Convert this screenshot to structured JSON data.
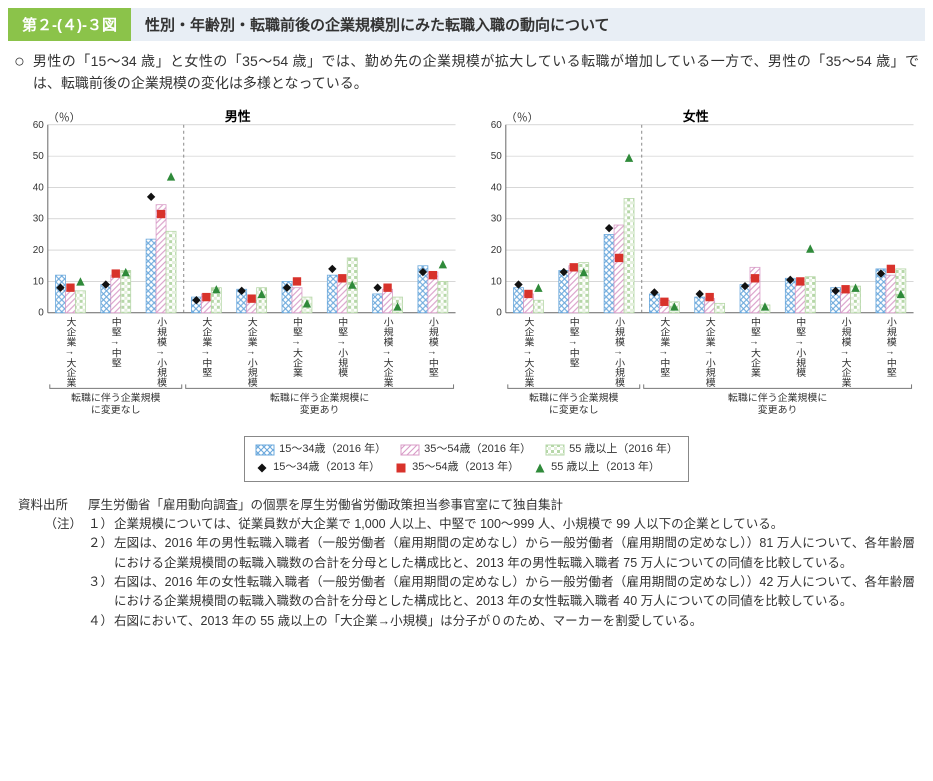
{
  "figure_label": "第２-(４)-３図",
  "figure_title": "性別・年齢別・転職前後の企業規模別にみた転職入職の動向について",
  "lead_bullet": "○",
  "lead_text": "男性の「15～34 歳」と女性の「35～54 歳」では、勤め先の企業規模が拡大している転職が増加している一方で、男性の「35～54 歳」では、転職前後の企業規模の変化は多様となっている。",
  "y_axis_label": "（％）",
  "y_lim": [
    0,
    60
  ],
  "y_tick_step": 10,
  "grid_color": "#bfbfbf",
  "axis_color": "#666666",
  "chart_bg": "#ffffff",
  "series_colors": {
    "bar_15_34": "#6aa8dc",
    "bar_35_54": "#d89bc7",
    "bar_55plus": "#b6d7a8",
    "marker_15_34": "#111111",
    "marker_35_54": "#d8322b",
    "marker_55plus": "#2f8a3a"
  },
  "categories": [
    "大企業→大企業",
    "中堅→中堅",
    "小規模→小規模",
    "大企業→中堅",
    "大企業→小規模",
    "中堅→大企業",
    "中堅→小規模",
    "小規模→大企業",
    "小規模→中堅"
  ],
  "group_labels": {
    "no_change": "転職に伴う企業規模\nに変更なし",
    "change": "転職に伴う企業規模に\n変更あり"
  },
  "group_split_after_index": 2,
  "panels": [
    {
      "title": "男性",
      "bars": [
        [
          12.0,
          7.0,
          7.0
        ],
        [
          9.0,
          12.0,
          13.5
        ],
        [
          23.5,
          34.5,
          26.0
        ],
        [
          5.0,
          6.0,
          8.0
        ],
        [
          7.5,
          4.0,
          8.0
        ],
        [
          10.0,
          8.0,
          5.0
        ],
        [
          12.0,
          10.5,
          17.5
        ],
        [
          6.0,
          7.5,
          5.0
        ],
        [
          15.0,
          13.0,
          10.0
        ]
      ],
      "markers": [
        [
          8.0,
          8.0,
          10.0
        ],
        [
          9.0,
          12.5,
          13.0
        ],
        [
          37.0,
          31.5,
          43.5
        ],
        [
          4.0,
          5.0,
          7.5
        ],
        [
          7.0,
          4.5,
          6.0
        ],
        [
          8.0,
          10.0,
          3.0
        ],
        [
          14.0,
          11.0,
          9.0
        ],
        [
          8.0,
          8.0,
          2.0
        ],
        [
          13.0,
          12.0,
          15.5
        ]
      ]
    },
    {
      "title": "女性",
      "bars": [
        [
          8.0,
          6.0,
          4.0
        ],
        [
          13.5,
          15.0,
          16.0
        ],
        [
          25.0,
          28.0,
          36.5
        ],
        [
          6.0,
          4.0,
          3.5
        ],
        [
          5.0,
          4.5,
          3.0
        ],
        [
          9.0,
          14.5,
          2.5
        ],
        [
          11.0,
          9.0,
          11.5
        ],
        [
          8.0,
          6.5,
          8.5
        ],
        [
          14.0,
          12.0,
          14.0
        ]
      ],
      "markers": [
        [
          9.0,
          6.0,
          8.0
        ],
        [
          13.0,
          14.5,
          13.0
        ],
        [
          27.0,
          17.5,
          49.5
        ],
        [
          6.5,
          3.5,
          2.0
        ],
        [
          6.0,
          5.0,
          null
        ],
        [
          8.5,
          11.0,
          2.0
        ],
        [
          10.5,
          10.0,
          20.5
        ],
        [
          7.0,
          7.5,
          8.0
        ],
        [
          12.5,
          14.0,
          6.0
        ]
      ]
    }
  ],
  "legend": {
    "bars": [
      {
        "label": "15～34歳（2016 年）"
      },
      {
        "label": "35～54歳（2016 年）"
      },
      {
        "label": "55 歳以上（2016 年）"
      }
    ],
    "markers": [
      {
        "shape": "diamond",
        "label": "15～34歳（2013 年）"
      },
      {
        "shape": "square",
        "label": "35～54歳（2013 年）"
      },
      {
        "shape": "triangle",
        "label": "55 歳以上（2013 年）"
      }
    ]
  },
  "source_label": "資料出所",
  "source_text": "厚生労働省「雇用動向調査」の個票を厚生労働省労働政策担当参事官室にて独自集計",
  "notes_label": "（注）",
  "notes": [
    "企業規模については、従業員数が大企業で 1,000 人以上、中堅で 100～999 人、小規模で 99 人以下の企業としている。",
    "左図は、2016 年の男性転職入職者（一般労働者（雇用期間の定めなし）から一般労働者（雇用期間の定めなし））81 万人について、各年齢層における企業規模間の転職入職数の合計を分母とした構成比と、2013 年の男性転職入職者 75 万人についての同値を比較している。",
    "右図は、2016 年の女性転職入職者（一般労働者（雇用期間の定めなし）から一般労働者（雇用期間の定めなし））42 万人について、各年齢層における企業規模間の転職入職数の合計を分母とした構成比と、2013 年の女性転職入職者 40 万人についての同値を比較している。",
    "右図において、2013 年の 55 歳以上の「大企業→小規模」は分子が０のため、マーカーを割愛している。"
  ]
}
